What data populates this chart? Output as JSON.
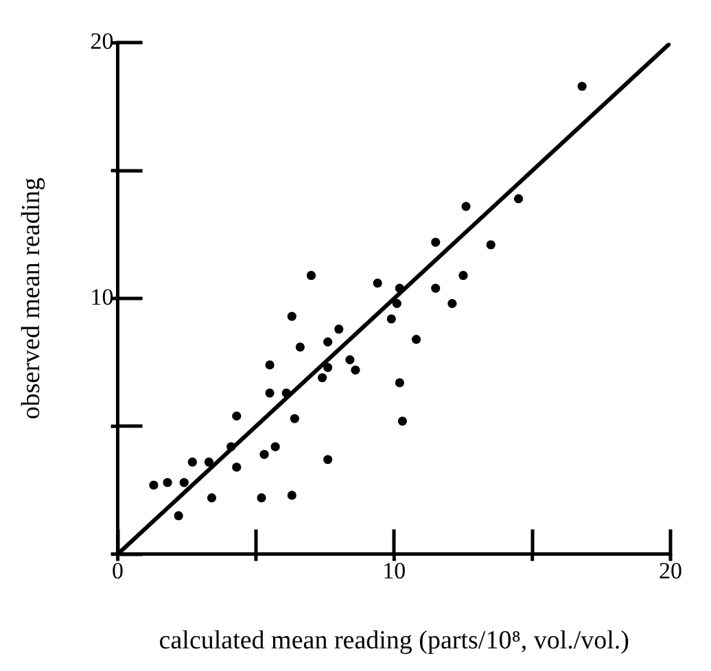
{
  "chart_data": {
    "type": "scatter",
    "xlabel": "calculated mean reading (parts/10⁸, vol./vol.)",
    "ylabel": "observed mean reading",
    "xlim": [
      0,
      20
    ],
    "ylim": [
      0,
      20
    ],
    "xticks": [
      0,
      {
        "value": 5,
        "label": null
      },
      10,
      {
        "value": 15,
        "label": null
      },
      20
    ],
    "yticks": [
      {
        "value": 0,
        "label": null
      },
      {
        "value": 5,
        "label": null
      },
      10,
      {
        "value": 15,
        "label": null
      },
      20
    ],
    "grid": false,
    "legend": false,
    "marker": "circle",
    "series": [
      {
        "color": "#000000",
        "x": [
          1.3,
          1.8,
          2.4,
          2.2,
          2.7,
          3.3,
          3.4,
          4.1,
          4.3,
          4.3,
          5.2,
          5.3,
          5.7,
          5.5,
          5.5,
          6.1,
          6.3,
          6.4,
          6.3,
          6.6,
          7.0,
          7.4,
          7.6,
          7.6,
          7.6,
          8.0,
          8.4,
          8.6,
          9.4,
          9.9,
          10.1,
          10.2,
          10.2,
          10.3,
          10.8,
          11.5,
          11.5,
          12.1,
          12.6,
          12.5,
          13.5,
          14.5,
          16.8
        ],
        "values": [
          2.7,
          2.8,
          2.8,
          1.5,
          3.6,
          3.6,
          2.2,
          4.2,
          3.4,
          5.4,
          2.2,
          3.9,
          4.2,
          6.3,
          7.4,
          6.3,
          2.3,
          5.3,
          9.3,
          8.1,
          10.9,
          6.9,
          3.7,
          8.3,
          7.3,
          8.8,
          7.6,
          7.2,
          10.6,
          9.2,
          9.8,
          10.4,
          6.7,
          5.2,
          8.4,
          12.2,
          10.4,
          9.8,
          13.6,
          10.9,
          12.1,
          13.9,
          18.3
        ]
      },
      {
        "type": "line",
        "color": "#000000",
        "x": [
          0,
          20
        ],
        "values": [
          0,
          20
        ],
        "marker": "none",
        "line_style": "solid"
      }
    ]
  }
}
